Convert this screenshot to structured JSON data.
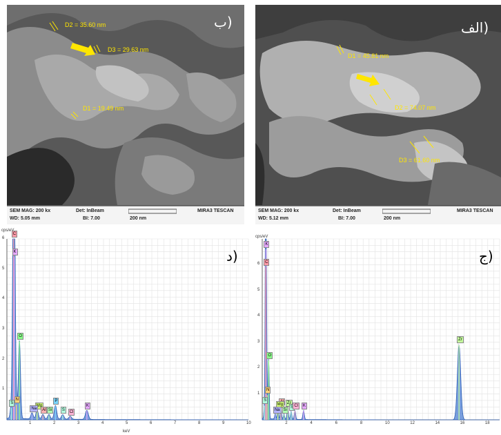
{
  "panels": {
    "sem_b": {
      "label": "(ب",
      "measurements": [
        {
          "id": "D2",
          "text": "D2 = 35.60 nm"
        },
        {
          "id": "D3",
          "text": "D3 = 29.63 nm"
        },
        {
          "id": "D1",
          "text": "D1 = 19.49 nm"
        }
      ],
      "info_bar": {
        "mag": "SEM MAG: 200 kx",
        "det": "Det: InBeam",
        "wd": "WD: 5.05 mm",
        "bi": "BI: 7.00",
        "scale": "200 nm",
        "brand": "MIRA3 TESCAN"
      }
    },
    "sem_alef": {
      "label": "(الف",
      "measurements": [
        {
          "id": "D1",
          "text": "D1 = 45.81 nm"
        },
        {
          "id": "D2",
          "text": "D2 = 74.07 nm"
        },
        {
          "id": "D3",
          "text": "D3 = 61.60 nm"
        }
      ],
      "info_bar": {
        "mag": "SEM MAG: 200 kx",
        "det": "Det: InBeam",
        "wd": "WD: 5.12 mm",
        "bi": "BI: 7.00",
        "scale": "200 nm",
        "brand": "MIRA3 TESCAN"
      }
    },
    "eds_dal": {
      "label": "(د",
      "y_unit": "cps/eV",
      "x_unit": "keV",
      "peaks": [
        "C",
        "K",
        "O",
        "N",
        "S",
        "Mg",
        "Na",
        "Al",
        "Si",
        "P",
        "S",
        "Cl",
        "K"
      ]
    },
    "eds_jim": {
      "label": "(ج",
      "y_unit": "cps/eV",
      "peaks": [
        "K",
        "C",
        "O",
        "N",
        "S",
        "Al",
        "Mg",
        "Zr",
        "Na",
        "Si",
        "S",
        "Cl",
        "K",
        "Zr"
      ]
    }
  },
  "chart_data": [
    {
      "type": "line",
      "panel": "(د",
      "ylabel": "cps/eV",
      "xlabel": "keV",
      "xlim": [
        0,
        10
      ],
      "ylim": [
        0,
        6
      ],
      "x_ticks": [
        1,
        2,
        3,
        4,
        5,
        6,
        7,
        8,
        9,
        10
      ],
      "y_ticks": [
        1,
        2,
        3,
        4,
        5,
        6
      ],
      "grid": true,
      "peaks": [
        {
          "label": "C",
          "x": 0.28,
          "y": 6.0
        },
        {
          "label": "K",
          "x": 0.3,
          "y": 5.4
        },
        {
          "label": "O",
          "x": 0.52,
          "y": 2.6
        },
        {
          "label": "N",
          "x": 0.39,
          "y": 0.5
        },
        {
          "label": "S",
          "x": 0.18,
          "y": 0.4
        },
        {
          "label": "Mg",
          "x": 1.25,
          "y": 0.3
        },
        {
          "label": "Na",
          "x": 1.04,
          "y": 0.2
        },
        {
          "label": "Al",
          "x": 1.49,
          "y": 0.15
        },
        {
          "label": "Si",
          "x": 1.74,
          "y": 0.15
        },
        {
          "label": "P",
          "x": 2.01,
          "y": 0.45
        },
        {
          "label": "S",
          "x": 2.31,
          "y": 0.15
        },
        {
          "label": "Cl",
          "x": 2.62,
          "y": 0.1
        },
        {
          "label": "K",
          "x": 3.31,
          "y": 0.3
        }
      ]
    },
    {
      "type": "line",
      "panel": "(ج",
      "ylabel": "cps/eV",
      "xlim": [
        0,
        19
      ],
      "ylim": [
        0,
        7
      ],
      "x_ticks": [
        2,
        4,
        6,
        8,
        10,
        12,
        14,
        16,
        18
      ],
      "y_ticks": [
        1,
        2,
        3,
        4,
        5,
        6
      ],
      "grid": true,
      "peaks": [
        {
          "label": "K",
          "x": 0.3,
          "y": 6.6
        },
        {
          "label": "C",
          "x": 0.28,
          "y": 5.9
        },
        {
          "label": "O",
          "x": 0.52,
          "y": 2.3
        },
        {
          "label": "N",
          "x": 0.39,
          "y": 0.95
        },
        {
          "label": "S",
          "x": 0.18,
          "y": 0.55
        },
        {
          "label": "Al",
          "x": 1.49,
          "y": 0.5
        },
        {
          "label": "Mg",
          "x": 1.25,
          "y": 0.4
        },
        {
          "label": "Zr",
          "x": 2.04,
          "y": 0.45
        },
        {
          "label": "Na",
          "x": 1.04,
          "y": 0.2
        },
        {
          "label": "Si",
          "x": 1.74,
          "y": 0.2
        },
        {
          "label": "S",
          "x": 2.31,
          "y": 0.3
        },
        {
          "label": "Cl",
          "x": 2.62,
          "y": 0.35
        },
        {
          "label": "K",
          "x": 3.31,
          "y": 0.35
        },
        {
          "label": "Zr",
          "x": 15.75,
          "y": 2.9
        }
      ]
    }
  ]
}
